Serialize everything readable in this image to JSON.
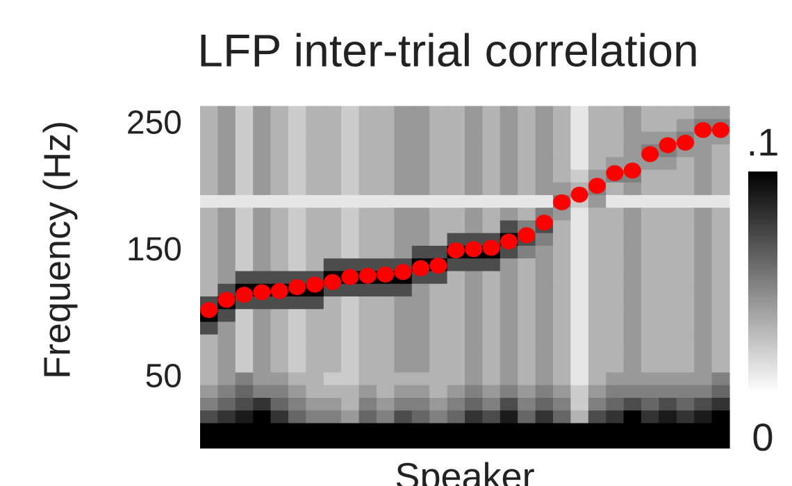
{
  "chart_data": {
    "type": "heatmap",
    "title": "LFP inter-trial correlation",
    "xlabel": "Speaker",
    "ylabel": "Frequency (Hz)",
    "categories": [
      null,
      null,
      null,
      null,
      null,
      null,
      null,
      null,
      null,
      null,
      null,
      null,
      null,
      null,
      null,
      null,
      null,
      null,
      null,
      null,
      null,
      null,
      null,
      null,
      null,
      null,
      null,
      null,
      null,
      null
    ],
    "y_bins": [
      0,
      10,
      20,
      30,
      40,
      50,
      60,
      70,
      80,
      90,
      100,
      110,
      120,
      130,
      140,
      150,
      160,
      170,
      180,
      190,
      200,
      210,
      220,
      230,
      240,
      250,
      260
    ],
    "ylim": [
      -5,
      265
    ],
    "yticks": [
      50,
      150,
      250
    ],
    "zlim": [
      0,
      0.1
    ],
    "zticks": [
      {
        "value": 0.1,
        "label": ".1"
      },
      0
    ],
    "colormap": [
      "#ffffff",
      "#000000"
    ],
    "z": [
      [
        0.1,
        0.1,
        0.1,
        0.1,
        0.1,
        0.1,
        0.1,
        0.1,
        0.1,
        0.1,
        0.1,
        0.1,
        0.1,
        0.1,
        0.1,
        0.1,
        0.1,
        0.1,
        0.1,
        0.1,
        0.1,
        0.1,
        0.1,
        0.1,
        0.1,
        0.1,
        0.1,
        0.1,
        0.1,
        0.1
      ],
      [
        0.1,
        0.1,
        0.1,
        0.1,
        0.1,
        0.1,
        0.1,
        0.1,
        0.1,
        0.1,
        0.1,
        0.1,
        0.1,
        0.1,
        0.1,
        0.1,
        0.1,
        0.1,
        0.1,
        0.1,
        0.1,
        0.1,
        0.1,
        0.1,
        0.1,
        0.1,
        0.1,
        0.1,
        0.1,
        0.1
      ],
      [
        0.07,
        0.08,
        0.09,
        0.1,
        0.08,
        0.06,
        0.05,
        0.05,
        0.04,
        0.06,
        0.05,
        0.07,
        0.06,
        0.05,
        0.06,
        0.08,
        0.07,
        0.09,
        0.06,
        0.08,
        0.06,
        0.03,
        0.07,
        0.08,
        0.1,
        0.08,
        0.09,
        0.08,
        0.09,
        0.1
      ],
      [
        0.05,
        0.06,
        0.07,
        0.08,
        0.06,
        0.05,
        0.04,
        0.04,
        0.03,
        0.05,
        0.04,
        0.05,
        0.05,
        0.04,
        0.05,
        0.06,
        0.05,
        0.07,
        0.05,
        0.06,
        0.05,
        0.02,
        0.05,
        0.06,
        0.07,
        0.06,
        0.07,
        0.06,
        0.07,
        0.08
      ],
      [
        0.04,
        0.05,
        0.06,
        0.05,
        0.05,
        0.04,
        0.03,
        0.03,
        0.03,
        0.04,
        0.03,
        0.04,
        0.04,
        0.03,
        0.04,
        0.05,
        0.04,
        0.05,
        0.04,
        0.05,
        0.04,
        0.02,
        0.04,
        0.05,
        0.05,
        0.05,
        0.05,
        0.05,
        0.05,
        0.06
      ],
      [
        0.03,
        0.04,
        0.05,
        0.04,
        0.04,
        0.03,
        0.03,
        0.02,
        0.02,
        0.03,
        0.03,
        0.03,
        0.03,
        0.03,
        0.03,
        0.04,
        0.03,
        0.04,
        0.03,
        0.04,
        0.03,
        0.01,
        0.03,
        0.04,
        0.04,
        0.04,
        0.04,
        0.04,
        0.04,
        0.05
      ],
      [
        0.03,
        0.04,
        0.02,
        0.04,
        0.03,
        0.02,
        0.03,
        0.03,
        0.02,
        0.03,
        0.03,
        0.04,
        0.04,
        0.03,
        0.03,
        0.04,
        0.03,
        0.04,
        0.03,
        0.04,
        0.03,
        0.01,
        0.03,
        0.03,
        0.04,
        0.03,
        0.03,
        0.03,
        0.04,
        0.03
      ],
      [
        0.03,
        0.04,
        0.02,
        0.04,
        0.03,
        0.02,
        0.03,
        0.03,
        0.02,
        0.03,
        0.03,
        0.04,
        0.04,
        0.03,
        0.03,
        0.04,
        0.03,
        0.04,
        0.03,
        0.04,
        0.03,
        0.01,
        0.03,
        0.03,
        0.04,
        0.03,
        0.03,
        0.03,
        0.04,
        0.03
      ],
      [
        0.03,
        0.04,
        0.02,
        0.04,
        0.03,
        0.02,
        0.03,
        0.03,
        0.02,
        0.03,
        0.03,
        0.04,
        0.04,
        0.03,
        0.03,
        0.04,
        0.03,
        0.04,
        0.03,
        0.04,
        0.03,
        0.01,
        0.03,
        0.03,
        0.04,
        0.03,
        0.03,
        0.03,
        0.04,
        0.03
      ],
      [
        0.07,
        0.04,
        0.02,
        0.04,
        0.03,
        0.02,
        0.03,
        0.03,
        0.02,
        0.03,
        0.03,
        0.04,
        0.04,
        0.03,
        0.03,
        0.04,
        0.03,
        0.04,
        0.03,
        0.04,
        0.03,
        0.01,
        0.03,
        0.03,
        0.04,
        0.03,
        0.03,
        0.03,
        0.04,
        0.03
      ],
      [
        0.1,
        0.07,
        0.02,
        0.04,
        0.03,
        0.02,
        0.03,
        0.03,
        0.02,
        0.03,
        0.03,
        0.04,
        0.04,
        0.03,
        0.03,
        0.04,
        0.03,
        0.04,
        0.03,
        0.04,
        0.03,
        0.01,
        0.03,
        0.03,
        0.04,
        0.03,
        0.03,
        0.03,
        0.04,
        0.03
      ],
      [
        0.07,
        0.1,
        0.07,
        0.07,
        0.07,
        0.07,
        0.07,
        0.03,
        0.02,
        0.03,
        0.03,
        0.04,
        0.04,
        0.03,
        0.03,
        0.04,
        0.03,
        0.04,
        0.03,
        0.04,
        0.03,
        0.01,
        0.03,
        0.03,
        0.04,
        0.03,
        0.03,
        0.03,
        0.04,
        0.03
      ],
      [
        0.03,
        0.07,
        0.1,
        0.1,
        0.1,
        0.1,
        0.1,
        0.07,
        0.07,
        0.07,
        0.07,
        0.07,
        0.04,
        0.03,
        0.03,
        0.04,
        0.03,
        0.04,
        0.03,
        0.04,
        0.03,
        0.01,
        0.03,
        0.03,
        0.04,
        0.03,
        0.03,
        0.03,
        0.04,
        0.03
      ],
      [
        0.03,
        0.04,
        0.07,
        0.07,
        0.07,
        0.07,
        0.07,
        0.1,
        0.1,
        0.1,
        0.1,
        0.1,
        0.07,
        0.07,
        0.03,
        0.04,
        0.03,
        0.04,
        0.03,
        0.04,
        0.03,
        0.01,
        0.03,
        0.03,
        0.04,
        0.03,
        0.03,
        0.03,
        0.04,
        0.03
      ],
      [
        0.03,
        0.04,
        0.02,
        0.04,
        0.03,
        0.02,
        0.03,
        0.07,
        0.07,
        0.07,
        0.07,
        0.07,
        0.1,
        0.1,
        0.07,
        0.07,
        0.07,
        0.04,
        0.03,
        0.04,
        0.03,
        0.01,
        0.03,
        0.03,
        0.04,
        0.03,
        0.03,
        0.03,
        0.04,
        0.03
      ],
      [
        0.03,
        0.04,
        0.02,
        0.04,
        0.03,
        0.02,
        0.03,
        0.03,
        0.02,
        0.03,
        0.03,
        0.04,
        0.07,
        0.07,
        0.1,
        0.1,
        0.1,
        0.07,
        0.05,
        0.04,
        0.03,
        0.01,
        0.03,
        0.03,
        0.04,
        0.03,
        0.03,
        0.03,
        0.04,
        0.03
      ],
      [
        0.03,
        0.04,
        0.02,
        0.04,
        0.03,
        0.02,
        0.03,
        0.03,
        0.02,
        0.03,
        0.03,
        0.04,
        0.04,
        0.03,
        0.07,
        0.07,
        0.07,
        0.1,
        0.07,
        0.05,
        0.03,
        0.01,
        0.03,
        0.03,
        0.04,
        0.03,
        0.03,
        0.03,
        0.04,
        0.03
      ],
      [
        0.03,
        0.04,
        0.02,
        0.04,
        0.03,
        0.02,
        0.03,
        0.03,
        0.02,
        0.03,
        0.03,
        0.04,
        0.04,
        0.03,
        0.03,
        0.04,
        0.03,
        0.07,
        0.05,
        0.07,
        0.03,
        0.01,
        0.03,
        0.03,
        0.04,
        0.03,
        0.03,
        0.03,
        0.04,
        0.03
      ],
      [
        0.03,
        0.04,
        0.02,
        0.04,
        0.03,
        0.02,
        0.03,
        0.03,
        0.02,
        0.03,
        0.03,
        0.04,
        0.04,
        0.03,
        0.03,
        0.04,
        0.03,
        0.04,
        0.03,
        0.05,
        0.04,
        0.01,
        0.03,
        0.03,
        0.04,
        0.03,
        0.03,
        0.03,
        0.04,
        0.03
      ],
      [
        0.01,
        0.01,
        0.01,
        0.01,
        0.01,
        0.01,
        0.01,
        0.01,
        0.01,
        0.01,
        0.01,
        0.01,
        0.01,
        0.01,
        0.01,
        0.01,
        0.01,
        0.01,
        0.01,
        0.01,
        0.05,
        0.02,
        0.04,
        0.01,
        0.01,
        0.01,
        0.01,
        0.01,
        0.01,
        0.01
      ],
      [
        0.03,
        0.04,
        0.02,
        0.04,
        0.03,
        0.02,
        0.03,
        0.03,
        0.02,
        0.03,
        0.03,
        0.04,
        0.04,
        0.03,
        0.03,
        0.04,
        0.03,
        0.04,
        0.03,
        0.04,
        0.04,
        0.03,
        0.05,
        0.03,
        0.04,
        0.03,
        0.03,
        0.03,
        0.04,
        0.03
      ],
      [
        0.03,
        0.04,
        0.02,
        0.04,
        0.03,
        0.02,
        0.03,
        0.03,
        0.02,
        0.03,
        0.03,
        0.04,
        0.04,
        0.03,
        0.03,
        0.04,
        0.03,
        0.04,
        0.03,
        0.04,
        0.03,
        0.02,
        0.04,
        0.05,
        0.05,
        0.03,
        0.03,
        0.03,
        0.04,
        0.03
      ],
      [
        0.03,
        0.04,
        0.02,
        0.04,
        0.03,
        0.02,
        0.03,
        0.03,
        0.02,
        0.03,
        0.03,
        0.04,
        0.04,
        0.03,
        0.03,
        0.04,
        0.03,
        0.04,
        0.03,
        0.04,
        0.03,
        0.01,
        0.03,
        0.04,
        0.04,
        0.04,
        0.04,
        0.03,
        0.04,
        0.03
      ],
      [
        0.03,
        0.04,
        0.02,
        0.04,
        0.03,
        0.02,
        0.03,
        0.03,
        0.02,
        0.03,
        0.03,
        0.04,
        0.04,
        0.03,
        0.03,
        0.04,
        0.03,
        0.04,
        0.03,
        0.04,
        0.03,
        0.01,
        0.03,
        0.03,
        0.04,
        0.05,
        0.05,
        0.04,
        0.04,
        0.03
      ],
      [
        0.03,
        0.04,
        0.02,
        0.04,
        0.03,
        0.02,
        0.03,
        0.03,
        0.02,
        0.03,
        0.03,
        0.04,
        0.04,
        0.03,
        0.03,
        0.04,
        0.03,
        0.04,
        0.03,
        0.04,
        0.03,
        0.01,
        0.03,
        0.03,
        0.04,
        0.04,
        0.04,
        0.05,
        0.04,
        0.04
      ],
      [
        0.03,
        0.04,
        0.02,
        0.04,
        0.03,
        0.02,
        0.03,
        0.03,
        0.02,
        0.03,
        0.03,
        0.04,
        0.04,
        0.03,
        0.03,
        0.04,
        0.03,
        0.04,
        0.03,
        0.04,
        0.03,
        0.01,
        0.03,
        0.03,
        0.04,
        0.03,
        0.03,
        0.04,
        0.05,
        0.05
      ],
      [
        0.03,
        0.04,
        0.02,
        0.04,
        0.03,
        0.02,
        0.03,
        0.03,
        0.02,
        0.03,
        0.03,
        0.04,
        0.04,
        0.03,
        0.03,
        0.04,
        0.03,
        0.04,
        0.03,
        0.04,
        0.03,
        0.01,
        0.03,
        0.03,
        0.04,
        0.03,
        0.03,
        0.03,
        0.04,
        0.04
      ]
    ],
    "overlay": {
      "type": "scatter",
      "color": "#ff0000",
      "values": [
        104,
        112,
        116,
        118,
        119,
        122,
        124,
        126,
        130,
        131,
        132,
        134,
        137,
        139,
        151,
        152,
        153,
        158,
        163,
        173,
        189,
        195,
        202,
        212,
        214,
        227,
        234,
        236,
        246,
        246
      ]
    }
  }
}
